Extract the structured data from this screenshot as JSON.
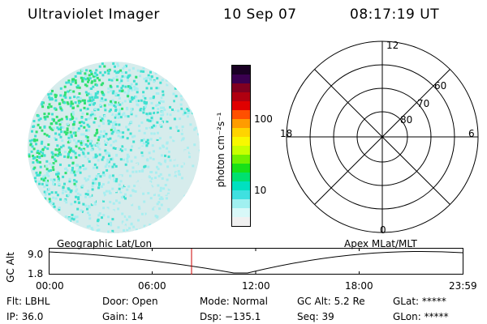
{
  "header": {
    "title": "Ultraviolet Imager",
    "date": "10 Sep 07",
    "time": "08:17:19 UT"
  },
  "colorbar": {
    "unit_label": "photon cm⁻²s⁻¹",
    "ticks": [
      "100",
      "10"
    ],
    "colors": [
      "#1a0024",
      "#3a0050",
      "#800020",
      "#b00010",
      "#e00000",
      "#ff5000",
      "#ff9c00",
      "#ffd400",
      "#f8f800",
      "#c8ff00",
      "#70f000",
      "#18e018",
      "#00e070",
      "#00e0c0",
      "#40e0e0",
      "#a0f0f0",
      "#d8f8f8",
      "#f0f0f0"
    ]
  },
  "polar": {
    "mlt_labels": [
      "12",
      "18",
      "6",
      "0"
    ],
    "lat_labels": [
      "60",
      "70",
      "80"
    ]
  },
  "timeline": {
    "y_axis_label": "GC Alt",
    "y_ticks": [
      "9.0",
      "1.8"
    ],
    "left_label": "Geographic Lat/Lon",
    "right_label": "Apex MLat/MLT",
    "x_ticks": [
      "00:00",
      "06:00",
      "12:00",
      "18:00",
      "23:59"
    ],
    "marker_color": "#cc0000"
  },
  "footer": {
    "flt": "Flt: LBHL",
    "ip": "IP: 36.0",
    "door": "Door: Open",
    "gain": "Gain: 14",
    "mode": "Mode: Normal",
    "dsp": "Dsp: −135.1",
    "gcalt": "GC Alt: 5.2 Re",
    "seq": "Seq: 39",
    "glat": "GLat: *****",
    "glon": "GLon: *****"
  },
  "image_colors": {
    "bright": "#30e070",
    "mid": "#40e0d0",
    "dim": "#a8eef0",
    "faint": "#d6ecec"
  }
}
